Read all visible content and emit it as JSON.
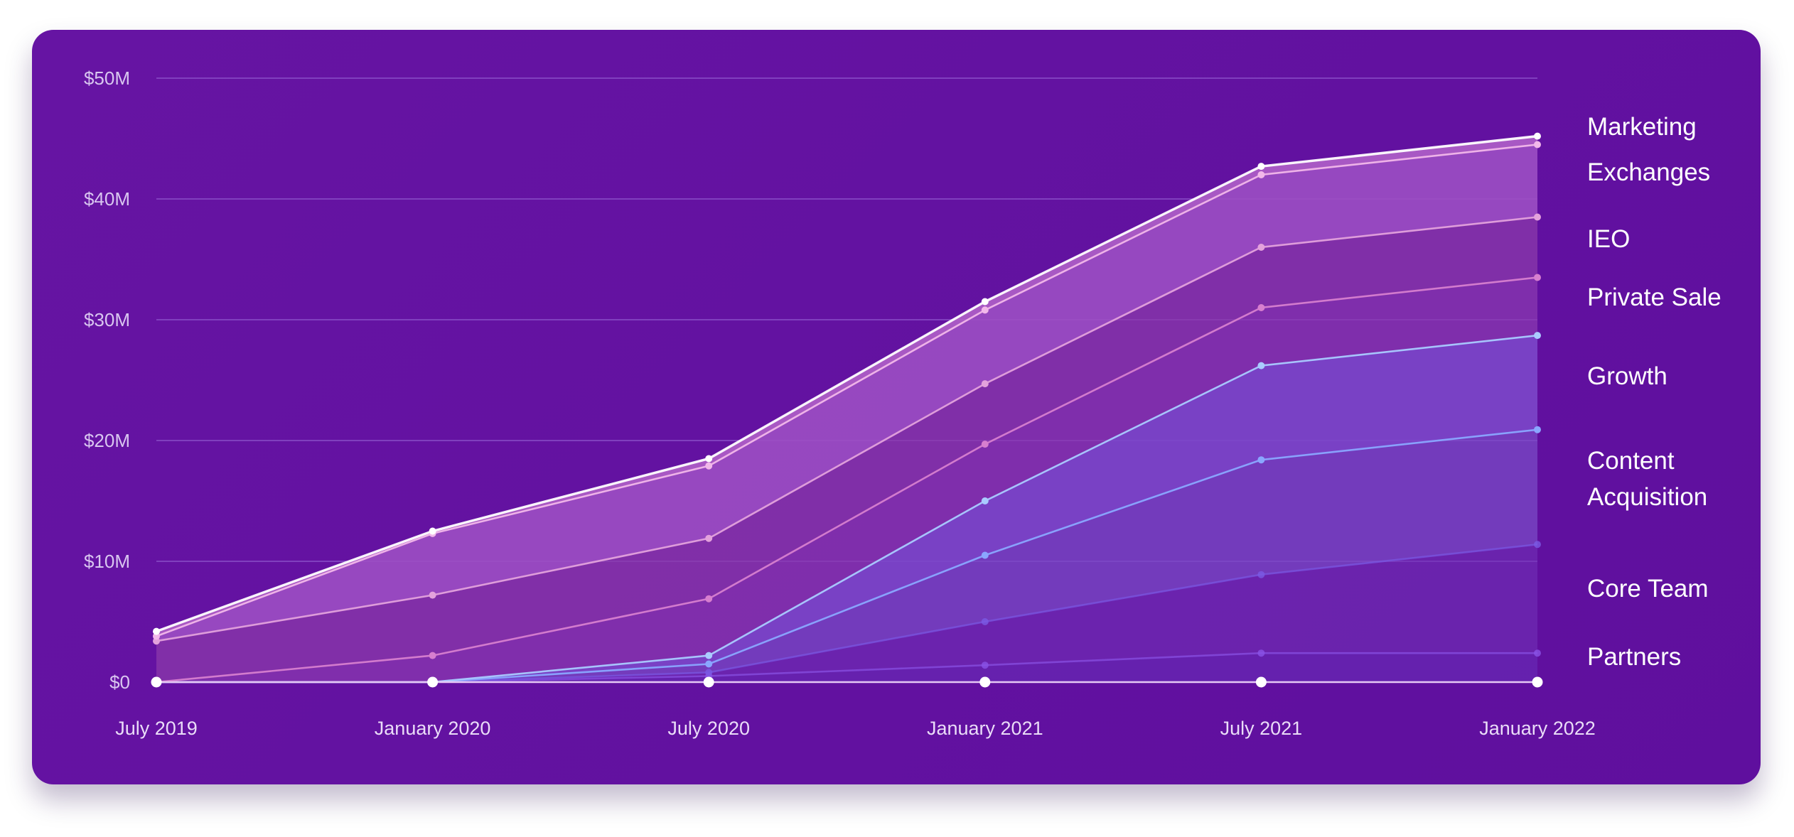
{
  "chart_data": {
    "type": "area",
    "stacked": true,
    "title": "",
    "xlabel": "",
    "ylabel": "",
    "categories": [
      "July 2019",
      "January 2020",
      "July 2020",
      "January 2021",
      "July 2021",
      "January 2022"
    ],
    "yticks": [
      "$0",
      "$10M",
      "$20M",
      "$30M",
      "$40M",
      "$50M"
    ],
    "ylim": [
      0,
      50
    ],
    "unit": "millions USD",
    "grid": true,
    "legend_position": "right",
    "series": [
      {
        "name": "Partners",
        "cumulative": [
          0,
          0,
          0.5,
          1.4,
          2.4,
          2.4
        ],
        "color": "#8a52e6"
      },
      {
        "name": "Core Team",
        "cumulative": [
          0,
          0,
          0.8,
          5.0,
          8.9,
          11.4
        ],
        "color": "#7a5ae4"
      },
      {
        "name": "Content Acquisition",
        "cumulative": [
          0,
          0,
          1.5,
          10.5,
          18.4,
          20.9
        ],
        "color": "#8aa6ff"
      },
      {
        "name": "Growth",
        "cumulative": [
          0,
          0,
          2.2,
          15.0,
          26.2,
          28.7
        ],
        "color": "#aacbff"
      },
      {
        "name": "Private Sale",
        "cumulative": [
          0,
          2.2,
          6.9,
          19.7,
          31.0,
          33.5
        ],
        "color": "#d77fcf"
      },
      {
        "name": "IEO",
        "cumulative": [
          3.4,
          7.2,
          11.9,
          24.7,
          36.0,
          38.5
        ],
        "color": "#e3a2dc"
      },
      {
        "name": "Exchanges",
        "cumulative": [
          3.8,
          12.3,
          17.9,
          30.8,
          42.0,
          44.5
        ],
        "color": "#f2b8ea"
      },
      {
        "name": "Marketing",
        "cumulative": [
          4.2,
          12.5,
          18.5,
          31.5,
          42.7,
          45.2
        ],
        "color": "#ffffff"
      }
    ],
    "legend": [
      {
        "lines": [
          "Marketing"
        ]
      },
      {
        "lines": [
          "Exchanges"
        ]
      },
      {
        "lines": [
          "IEO"
        ]
      },
      {
        "lines": [
          "Private Sale"
        ]
      },
      {
        "lines": [
          "Growth"
        ]
      },
      {
        "lines": [
          "Content",
          "Acquisition"
        ]
      },
      {
        "lines": [
          "Core Team"
        ]
      },
      {
        "lines": [
          "Partners"
        ]
      }
    ]
  }
}
